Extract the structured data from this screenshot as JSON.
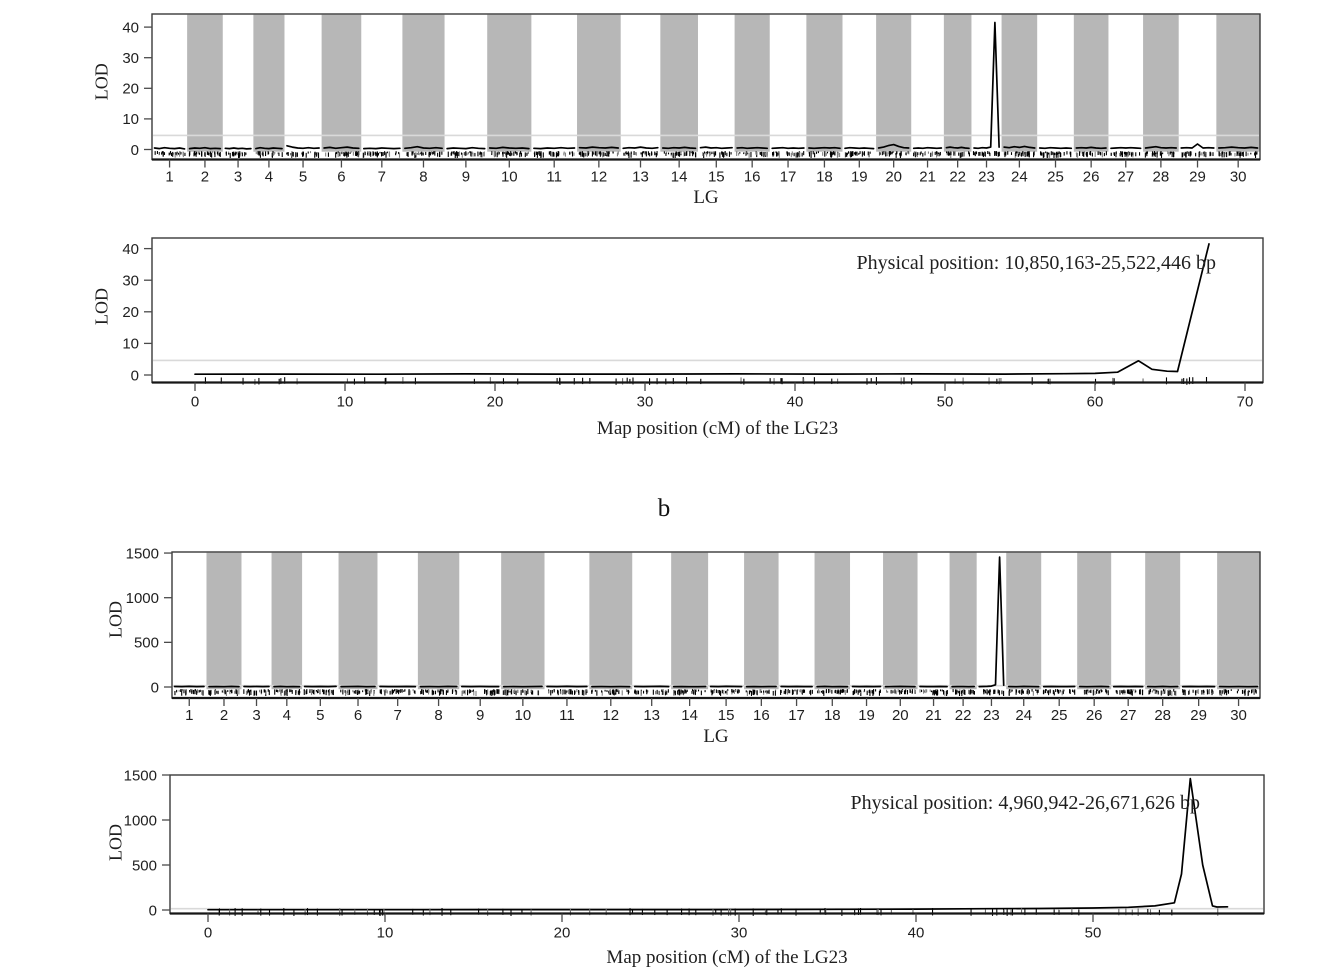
{
  "figure": {
    "section_label_b": "b",
    "colors": {
      "band": "#b7b7b7",
      "threshold_line": "#d9d9d9",
      "data_line": "#000000",
      "border": "#3a3a3a",
      "bottom_border": "#161616",
      "tick": "#4a4a4a",
      "text": "#1f1f1f"
    },
    "rug_seed": 42,
    "genome_rug_density": 0.9,
    "lg23_rug_count_a": 75,
    "lg23_rug_count_b": 95
  },
  "chart_data": [
    {
      "id": "a-genome",
      "type": "line",
      "xlabel": "LG",
      "ylabel": "LOD",
      "ylim": [
        0,
        44
      ],
      "yticks": [
        0,
        10,
        20,
        30,
        40
      ],
      "threshold": 4.6,
      "shaded_bands": "even LG numbers shaded gray",
      "categories": [
        1,
        2,
        3,
        4,
        5,
        6,
        7,
        8,
        9,
        10,
        11,
        12,
        13,
        14,
        15,
        16,
        17,
        18,
        19,
        20,
        21,
        22,
        23,
        24,
        25,
        26,
        27,
        28,
        29,
        30
      ],
      "band_weights": [
        35,
        35.5,
        30.5,
        31,
        37,
        39.5,
        41,
        42,
        42.5,
        44,
        45.5,
        43.5,
        39.5,
        37.5,
        36.5,
        35,
        36.5,
        36,
        33.5,
        35,
        32.5,
        27.5,
        30,
        35.5,
        36.5,
        34.5,
        34.5,
        35.5,
        37.5,
        43.5
      ],
      "peak": {
        "lg": 23,
        "lod": 41.5
      },
      "series_by_lg": [
        [
          0.5,
          0.3,
          0.6,
          0.4,
          0.3,
          0.5,
          0.2
        ],
        [
          0.3,
          0.5,
          0.4,
          0.6,
          0.3,
          0.4,
          0.3
        ],
        [
          0.4,
          0.3,
          0.5,
          0.3,
          0.4,
          0.2,
          0.3
        ],
        [
          0.3,
          0.6,
          0.4,
          0.3,
          0.5,
          0.4,
          0.3
        ],
        [
          1.2,
          0.8,
          0.5,
          0.4,
          0.6,
          0.4,
          0.5
        ],
        [
          0.5,
          0.7,
          0.4,
          0.6,
          0.8,
          0.5,
          0.4
        ],
        [
          0.3,
          0.4,
          0.3,
          0.5,
          0.4,
          0.3,
          0.4
        ],
        [
          0.4,
          0.6,
          0.9,
          0.5,
          0.4,
          0.6,
          0.4
        ],
        [
          0.3,
          0.5,
          0.4,
          0.3,
          0.6,
          0.4,
          0.3
        ],
        [
          0.5,
          0.4,
          0.7,
          0.5,
          0.4,
          0.5,
          0.3
        ],
        [
          0.4,
          0.3,
          0.5,
          0.4,
          0.6,
          0.4,
          0.5
        ],
        [
          0.6,
          0.5,
          0.8,
          0.6,
          0.5,
          0.7,
          0.5
        ],
        [
          0.4,
          0.6,
          0.5,
          0.8,
          0.5,
          0.4,
          0.6
        ],
        [
          0.5,
          0.4,
          0.6,
          0.5,
          0.7,
          0.5,
          0.4
        ],
        [
          0.6,
          0.8,
          0.5,
          0.6,
          0.4,
          0.5,
          0.6
        ],
        [
          0.5,
          0.6,
          0.4,
          0.5,
          0.6,
          0.5,
          0.4
        ],
        [
          0.4,
          0.5,
          0.6,
          0.4,
          0.5,
          0.4,
          0.5
        ],
        [
          0.5,
          0.4,
          0.5,
          0.6,
          0.5,
          0.6,
          0.4
        ],
        [
          0.4,
          0.6,
          0.5,
          0.4,
          0.5,
          0.4,
          0.3
        ],
        [
          0.5,
          0.8,
          1.3,
          1.6,
          1.0,
          0.6,
          0.5
        ],
        [
          0.4,
          0.5,
          0.4,
          0.6,
          0.5,
          0.4,
          0.5
        ],
        [
          0.6,
          0.8,
          0.6,
          0.5,
          0.7,
          0.5,
          0.4
        ],
        [
          0.5,
          0.4,
          0.6,
          0.5,
          0.8,
          41.5,
          0.8
        ],
        [
          0.8,
          0.6,
          0.9,
          0.7,
          1.0,
          0.7,
          0.5
        ],
        [
          0.5,
          0.4,
          0.6,
          0.5,
          0.4,
          0.5,
          0.4
        ],
        [
          0.5,
          0.6,
          0.5,
          0.7,
          0.5,
          0.4,
          0.5
        ],
        [
          0.4,
          0.5,
          0.6,
          0.5,
          0.6,
          0.5,
          0.4
        ],
        [
          0.5,
          0.7,
          0.9,
          0.6,
          0.5,
          0.6,
          0.5
        ],
        [
          0.5,
          0.6,
          0.5,
          1.8,
          0.5,
          0.6,
          0.5
        ],
        [
          0.5,
          0.6,
          0.8,
          0.6,
          0.5,
          0.7,
          0.5
        ]
      ]
    },
    {
      "id": "a-lg23",
      "type": "line",
      "xlabel": "Map position (cM) of the LG23",
      "ylabel": "LOD",
      "xlim": [
        -3,
        71
      ],
      "xticks": [
        0,
        10,
        20,
        30,
        40,
        50,
        60,
        70
      ],
      "ylim": [
        0,
        44
      ],
      "yticks": [
        0,
        10,
        20,
        30,
        40
      ],
      "threshold": 4.6,
      "annotation": "Physical position: 10,850,163-25,522,446 bp",
      "peak": {
        "cM": 67.6,
        "lod": 41.5
      },
      "points": [
        [
          0,
          0.25
        ],
        [
          6,
          0.3
        ],
        [
          12,
          0.25
        ],
        [
          18,
          0.35
        ],
        [
          24,
          0.3
        ],
        [
          30,
          0.3
        ],
        [
          36,
          0.35
        ],
        [
          42,
          0.3
        ],
        [
          48,
          0.35
        ],
        [
          54,
          0.3
        ],
        [
          58,
          0.4
        ],
        [
          60,
          0.5
        ],
        [
          61.5,
          0.9
        ],
        [
          62.9,
          4.5
        ],
        [
          63.8,
          1.8
        ],
        [
          64.8,
          1.2
        ],
        [
          65.5,
          1.1
        ],
        [
          67.6,
          41.5
        ]
      ]
    },
    {
      "id": "b-genome",
      "type": "line",
      "xlabel": "LG",
      "ylabel": "LOD",
      "ylim": [
        0,
        1550
      ],
      "yticks": [
        0,
        500,
        1000,
        1500
      ],
      "threshold": 15,
      "shaded_bands": "even LG numbers shaded gray",
      "categories": [
        1,
        2,
        3,
        4,
        5,
        6,
        7,
        8,
        9,
        10,
        11,
        12,
        13,
        14,
        15,
        16,
        17,
        18,
        19,
        20,
        21,
        22,
        23,
        24,
        25,
        26,
        27,
        28,
        29,
        30
      ],
      "band_weights": [
        35,
        35.5,
        30.5,
        31,
        37,
        39.5,
        41,
        42,
        42.5,
        44,
        45.5,
        43.5,
        39.5,
        37.5,
        36.5,
        35,
        36.5,
        36,
        33.5,
        35,
        32.5,
        27.5,
        30,
        35.5,
        36.5,
        34.5,
        34.5,
        35.5,
        37.5,
        43.5
      ],
      "peak": {
        "lg": 23,
        "lod": 1455
      },
      "series_by_lg": [
        [
          6,
          5,
          7,
          5,
          6
        ],
        [
          5,
          6,
          5,
          7,
          5
        ],
        [
          6,
          5,
          6,
          5,
          6
        ],
        [
          5,
          7,
          5,
          6,
          5
        ],
        [
          6,
          5,
          6,
          5,
          7
        ],
        [
          5,
          6,
          7,
          5,
          6
        ],
        [
          6,
          5,
          5,
          6,
          5
        ],
        [
          5,
          6,
          5,
          7,
          6
        ],
        [
          6,
          5,
          6,
          5,
          5
        ],
        [
          5,
          6,
          5,
          6,
          7
        ],
        [
          6,
          5,
          7,
          5,
          6
        ],
        [
          5,
          6,
          5,
          6,
          5
        ],
        [
          6,
          5,
          6,
          7,
          5
        ],
        [
          5,
          6,
          5,
          5,
          6
        ],
        [
          6,
          5,
          7,
          6,
          5
        ],
        [
          5,
          6,
          5,
          6,
          6
        ],
        [
          6,
          5,
          6,
          5,
          5
        ],
        [
          5,
          7,
          5,
          6,
          5
        ],
        [
          6,
          5,
          6,
          5,
          6
        ],
        [
          5,
          6,
          7,
          6,
          5
        ],
        [
          6,
          5,
          5,
          6,
          5
        ],
        [
          5,
          6,
          6,
          5,
          6
        ],
        [
          5,
          6,
          7,
          10,
          25,
          1455,
          20
        ],
        [
          6,
          5,
          7,
          6,
          5
        ],
        [
          5,
          6,
          5,
          5,
          6
        ],
        [
          6,
          5,
          6,
          7,
          5
        ],
        [
          5,
          6,
          5,
          6,
          5
        ],
        [
          6,
          5,
          7,
          5,
          6
        ],
        [
          5,
          6,
          5,
          6,
          5
        ],
        [
          6,
          5,
          6,
          5,
          6
        ]
      ]
    },
    {
      "id": "b-lg23",
      "type": "line",
      "xlabel": "Map position (cM) of the LG23",
      "ylabel": "LOD",
      "xlim": [
        -2.2,
        59.6
      ],
      "xticks": [
        0,
        10,
        20,
        30,
        40,
        50
      ],
      "ylim": [
        0,
        1550
      ],
      "yticks": [
        0,
        500,
        1000,
        1500
      ],
      "threshold": 15,
      "annotation": "Physical position: 4,960,942-26,671,626 bp",
      "peak": {
        "cM": 55.5,
        "lod": 1460
      },
      "points": [
        [
          0,
          3
        ],
        [
          4,
          3
        ],
        [
          8,
          3
        ],
        [
          12,
          3
        ],
        [
          16,
          4
        ],
        [
          20,
          4
        ],
        [
          24,
          5
        ],
        [
          28,
          5
        ],
        [
          32,
          6
        ],
        [
          36,
          8
        ],
        [
          40,
          10
        ],
        [
          44,
          14
        ],
        [
          47,
          17
        ],
        [
          50,
          22
        ],
        [
          52,
          30
        ],
        [
          53.5,
          45
        ],
        [
          54.6,
          80
        ],
        [
          55.0,
          400
        ],
        [
          55.5,
          1460
        ],
        [
          56.2,
          500
        ],
        [
          56.75,
          45
        ],
        [
          57.0,
          33
        ],
        [
          57.6,
          36
        ]
      ]
    }
  ]
}
